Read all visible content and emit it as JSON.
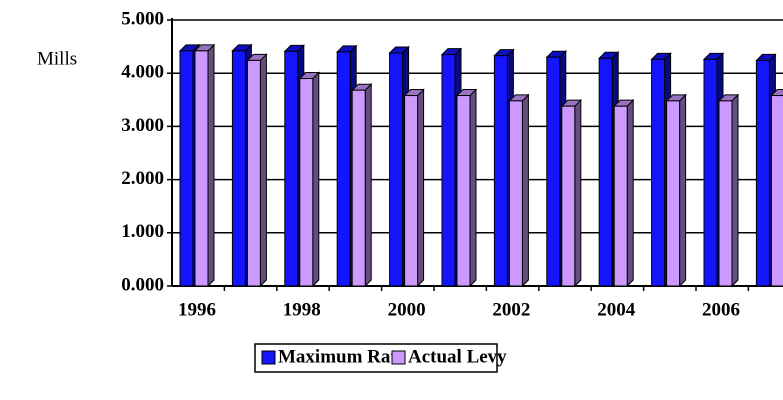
{
  "chart_data": {
    "type": "bar3d",
    "y_label": "Mills",
    "categories": [
      "1996",
      null,
      "1998",
      null,
      "2000",
      null,
      "2002",
      null,
      "2004",
      null,
      "2006",
      null
    ],
    "series": [
      {
        "name": "Maximum Rate",
        "color": "#1414ff",
        "values": [
          4.42,
          4.42,
          4.41,
          4.4,
          4.38,
          4.35,
          4.33,
          4.3,
          4.28,
          4.26,
          4.26,
          4.24
        ]
      },
      {
        "name": "Actual Levy",
        "color": "#cc99ff",
        "values": [
          4.42,
          4.24,
          3.9,
          3.68,
          3.58,
          3.58,
          3.48,
          3.38,
          3.38,
          3.48,
          3.48,
          3.58
        ]
      }
    ],
    "ylim": [
      0,
      5
    ],
    "yticks": [
      {
        "value": 0,
        "label": "0.000"
      },
      {
        "value": 1,
        "label": "1.000"
      },
      {
        "value": 2,
        "label": "2.000"
      },
      {
        "value": 3,
        "label": "3.000"
      },
      {
        "value": 4,
        "label": "4.000"
      },
      {
        "value": 5,
        "label": "5.000"
      }
    ],
    "grid": true,
    "legend": "bottom"
  }
}
